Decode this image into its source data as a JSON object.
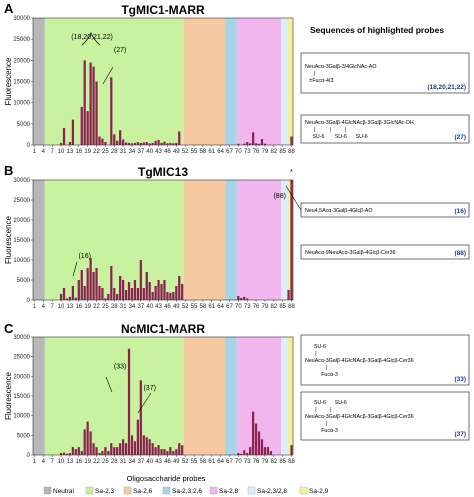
{
  "figure": {
    "sequences_heading": "Sequences of highlighted probes",
    "x_axis_label": "Oligosaccharide probes",
    "x_ticks": [
      "1",
      "4",
      "7",
      "10",
      "13",
      "16",
      "19",
      "22",
      "25",
      "28",
      "31",
      "34",
      "37",
      "40",
      "43",
      "46",
      "49",
      "52",
      "55",
      "58",
      "61",
      "64",
      "67",
      "70",
      "73",
      "76",
      "79",
      "82",
      "85",
      "88"
    ],
    "legend": [
      {
        "label": "Neutral",
        "color": "#b7b7b7"
      },
      {
        "label": "Sa-2,3",
        "color": "#c8f2a0"
      },
      {
        "label": "Sa-2,6",
        "color": "#f7c9a0"
      },
      {
        "label": "Sa-2,3;2,6",
        "color": "#a9d3ea"
      },
      {
        "label": "Sa-2,8",
        "color": "#f2b6ee"
      },
      {
        "label": "Sa-2,3/2,8",
        "color": "#d8f0f7"
      },
      {
        "label": "Sa-2,9",
        "color": "#f5f0a0"
      }
    ],
    "bar_color": "#8b2252"
  },
  "chart_data": [
    {
      "type": "bar",
      "letter": "A",
      "title": "TgMIC1-MARR",
      "ylabel": "Fluorescence",
      "ylim": [
        0,
        30000
      ],
      "yticks": [
        "0",
        "5000",
        "10000",
        "15000",
        "20000",
        "25000",
        "30000"
      ],
      "x": [
        1,
        2,
        3,
        4,
        5,
        6,
        7,
        8,
        9,
        10,
        11,
        12,
        13,
        14,
        15,
        16,
        17,
        18,
        19,
        20,
        21,
        22,
        23,
        24,
        25,
        26,
        27,
        28,
        29,
        30,
        31,
        32,
        33,
        34,
        35,
        36,
        37,
        38,
        39,
        40,
        41,
        42,
        43,
        44,
        45,
        46,
        47,
        48,
        49,
        50,
        51,
        52,
        53,
        54,
        55,
        56,
        57,
        58,
        59,
        60,
        61,
        62,
        63,
        64,
        65,
        66,
        67,
        68,
        69,
        70,
        71,
        72,
        73,
        74,
        75,
        76,
        77,
        78,
        79,
        80,
        81,
        82,
        83,
        84,
        85,
        86,
        87,
        88
      ],
      "values": [
        0,
        0,
        0,
        0,
        0,
        0,
        0,
        0,
        0,
        500,
        4000,
        0,
        700,
        6000,
        0,
        0,
        9000,
        20000,
        8000,
        19500,
        18500,
        15000,
        2000,
        1500,
        700,
        0,
        16000,
        2500,
        1000,
        3500,
        1300,
        600,
        500,
        400,
        500,
        700,
        500,
        600,
        700,
        400,
        500,
        1000,
        1200,
        500,
        800,
        400,
        500,
        400,
        500,
        3200,
        0,
        0,
        0,
        0,
        0,
        0,
        0,
        0,
        0,
        0,
        0,
        0,
        0,
        0,
        0,
        0,
        0,
        0,
        0,
        300,
        0,
        300,
        700,
        400,
        3000,
        400,
        300,
        1400,
        300,
        0,
        0,
        0,
        0,
        0,
        0,
        0,
        0,
        2000
      ],
      "annotations": [
        {
          "text": "(18,20,21,22)",
          "x": 20.5,
          "y": 25000
        },
        {
          "text": "(27)",
          "x": 30,
          "y": 22000
        }
      ],
      "sequences": [
        {
          "lines": [
            "NeuAcα-3Galβ-3/4GlcNAc-AO",
            "      |",
            "   ±Fucα-4/3"
          ],
          "id": "(18,20,21,22)"
        },
        {
          "lines": [
            "NeuAcα-3Galβ-4GlcNAcβ-3Galβ-3GlcNAc-DH",
            "      |          |         |",
            "     SU-6       SU-6      SU-6"
          ],
          "id": "(27)"
        }
      ]
    },
    {
      "type": "bar",
      "letter": "B",
      "title": "TgMIC13",
      "ylabel": "Fluorescence",
      "ylim": [
        0,
        30000
      ],
      "yticks": [
        "0",
        "5000",
        "10000",
        "15000",
        "20000",
        "25000",
        "30000"
      ],
      "x": [
        1,
        2,
        3,
        4,
        5,
        6,
        7,
        8,
        9,
        10,
        11,
        12,
        13,
        14,
        15,
        16,
        17,
        18,
        19,
        20,
        21,
        22,
        23,
        24,
        25,
        26,
        27,
        28,
        29,
        30,
        31,
        32,
        33,
        34,
        35,
        36,
        37,
        38,
        39,
        40,
        41,
        42,
        43,
        44,
        45,
        46,
        47,
        48,
        49,
        50,
        51,
        52,
        53,
        54,
        55,
        56,
        57,
        58,
        59,
        60,
        61,
        62,
        63,
        64,
        65,
        66,
        67,
        68,
        69,
        70,
        71,
        72,
        73,
        74,
        75,
        76,
        77,
        78,
        79,
        80,
        81,
        82,
        83,
        84,
        85,
        86,
        87,
        88
      ],
      "values": [
        0,
        0,
        0,
        0,
        0,
        0,
        0,
        0,
        0,
        1500,
        3000,
        400,
        800,
        3500,
        600,
        5000,
        7500,
        3500,
        8000,
        10500,
        7000,
        8000,
        3500,
        3000,
        400,
        1500,
        8500,
        3000,
        1500,
        6000,
        5000,
        2500,
        4500,
        3000,
        5000,
        3000,
        10000,
        3000,
        7000,
        4500,
        2000,
        3500,
        5000,
        4000,
        5000,
        2000,
        1800,
        2000,
        3500,
        6000,
        4000,
        0,
        0,
        0,
        0,
        0,
        0,
        0,
        0,
        0,
        0,
        0,
        0,
        0,
        0,
        0,
        0,
        0,
        0,
        1000,
        500,
        800,
        400,
        0,
        0,
        0,
        0,
        0,
        0,
        0,
        0,
        0,
        0,
        0,
        0,
        0,
        2500,
        30000
      ],
      "annotations": [
        {
          "text": "(16)",
          "x": 18,
          "y": 10500
        },
        {
          "text": "(88)",
          "x": 84,
          "y": 25500
        },
        {
          "text": "*",
          "x": 88,
          "y": 31500
        }
      ],
      "sequences": [
        {
          "lines": [
            "Neu4,5Acα-3Galβ-4Glcβ-AO"
          ],
          "id": "(16)"
        },
        {
          "lines": [
            "NeuAcα-9NeuAcα-3Galβ-4Glcβ-Cer36"
          ],
          "id": "(88)"
        }
      ]
    },
    {
      "type": "bar",
      "letter": "C",
      "title": "NcMIC1-MARR",
      "ylabel": "Fluorescence",
      "ylim": [
        0,
        30000
      ],
      "yticks": [
        "0",
        "5000",
        "10000",
        "15000",
        "20000",
        "25000",
        "30000"
      ],
      "x": [
        1,
        2,
        3,
        4,
        5,
        6,
        7,
        8,
        9,
        10,
        11,
        12,
        13,
        14,
        15,
        16,
        17,
        18,
        19,
        20,
        21,
        22,
        23,
        24,
        25,
        26,
        27,
        28,
        29,
        30,
        31,
        32,
        33,
        34,
        35,
        36,
        37,
        38,
        39,
        40,
        41,
        42,
        43,
        44,
        45,
        46,
        47,
        48,
        49,
        50,
        51,
        52,
        53,
        54,
        55,
        56,
        57,
        58,
        59,
        60,
        61,
        62,
        63,
        64,
        65,
        66,
        67,
        68,
        69,
        70,
        71,
        72,
        73,
        74,
        75,
        76,
        77,
        78,
        79,
        80,
        81,
        82,
        83,
        84,
        85,
        86,
        87,
        88
      ],
      "values": [
        0,
        0,
        0,
        0,
        0,
        0,
        0,
        0,
        0,
        500,
        600,
        300,
        500,
        2000,
        1500,
        2000,
        1000,
        6500,
        8500,
        6000,
        3000,
        2000,
        500,
        1000,
        2000,
        1000,
        3000,
        2000,
        2000,
        3000,
        4000,
        3000,
        27000,
        5000,
        3500,
        9000,
        19000,
        5000,
        4500,
        4000,
        3000,
        2000,
        2500,
        1500,
        1500,
        1000,
        2000,
        1000,
        1500,
        3000,
        2500,
        0,
        0,
        0,
        0,
        0,
        0,
        0,
        0,
        0,
        0,
        0,
        0,
        0,
        0,
        0,
        0,
        0,
        0,
        500,
        300,
        1200,
        500,
        2000,
        11000,
        8000,
        6000,
        4000,
        2000,
        2000,
        1000,
        0,
        0,
        0,
        0,
        0,
        0,
        2500
      ],
      "annotations": [
        {
          "text": "(33)",
          "x": 30,
          "y": 22000
        },
        {
          "text": "(37)",
          "x": 40,
          "y": 16500
        }
      ],
      "sequences": [
        {
          "lines": [
            "      SU-6",
            "       |",
            "NeuAcα-3Galβ-4GlcNAcβ-3Galβ-4Glcβ-Cer36",
            "              |",
            "           Fucα-3"
          ],
          "id": "(33)"
        },
        {
          "lines": [
            "      SU-6      SU-6",
            "       |         |",
            "NeuAcα-3Galβ-4GlcNAcβ-3Galβ-4Glcβ-Cer36",
            "              |",
            "           Fucα-3"
          ],
          "id": "(37)"
        }
      ]
    }
  ]
}
